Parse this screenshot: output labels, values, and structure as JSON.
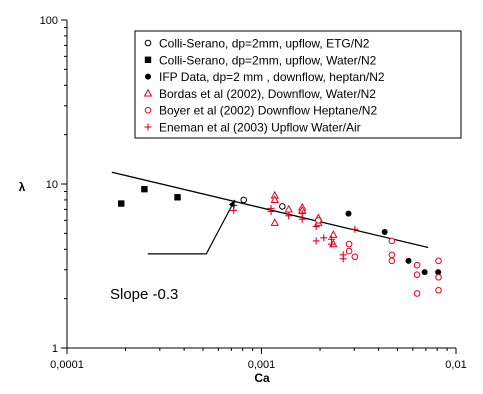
{
  "chart_data": {
    "type": "scatter",
    "title": "",
    "xlabel": "Ca",
    "ylabel": "λ",
    "x_scale": "log",
    "y_scale": "log",
    "xlim": [
      0.0001,
      0.01
    ],
    "ylim": [
      1,
      100
    ],
    "x_ticks": [
      "0,0001",
      "0,001",
      "0,01"
    ],
    "y_ticks": [
      "1",
      "10",
      "100"
    ],
    "grid": false,
    "legend_position": "top-right",
    "series": [
      {
        "name": "Colli-Serano, dp=2mm, upflow, ETG/N2",
        "marker": "open-circle",
        "color": "#000000",
        "points": [
          [
            0.00081,
            8.0
          ],
          [
            0.00128,
            7.3
          ]
        ]
      },
      {
        "name": "Colli-Serano, dp=2mm, upflow, Water/N2",
        "marker": "filled-square",
        "color": "#000000",
        "points": [
          [
            0.00019,
            7.6
          ],
          [
            0.00025,
            9.3
          ],
          [
            0.00037,
            8.3
          ]
        ]
      },
      {
        "name": "IFP Data, dp=2 mm , downflow, heptan/N2",
        "marker": "filled-circle",
        "color": "#000000",
        "points": [
          [
            0.0028,
            6.6
          ],
          [
            0.0043,
            5.1
          ],
          [
            0.0057,
            3.4
          ],
          [
            0.0069,
            2.9
          ],
          [
            0.0081,
            2.9
          ]
        ]
      },
      {
        "name": "Bordas et al (2002), Downflow, Water/N2",
        "marker": "open-triangle",
        "color": "#e8001c",
        "points": [
          [
            0.00117,
            8.5
          ],
          [
            0.00117,
            8.0
          ],
          [
            0.00117,
            5.8
          ],
          [
            0.00138,
            7.0
          ],
          [
            0.00162,
            7.2
          ],
          [
            0.00162,
            6.9
          ],
          [
            0.00196,
            6.2
          ],
          [
            0.00196,
            5.8
          ],
          [
            0.00234,
            4.9
          ],
          [
            0.00234,
            4.3
          ]
        ]
      },
      {
        "name": "Boyer et al (2002) Downflow Heptane/N2",
        "marker": "open-circle",
        "color": "#e8001c",
        "points": [
          [
            0.00196,
            6.0
          ],
          [
            0.00282,
            4.3
          ],
          [
            0.00282,
            3.9
          ],
          [
            0.00302,
            3.6
          ],
          [
            0.00468,
            4.5
          ],
          [
            0.00468,
            3.7
          ],
          [
            0.00468,
            3.4
          ],
          [
            0.00631,
            3.2
          ],
          [
            0.00631,
            2.8
          ],
          [
            0.00631,
            2.15
          ],
          [
            0.00813,
            3.4
          ],
          [
            0.00813,
            2.7
          ],
          [
            0.00813,
            2.25
          ]
        ]
      },
      {
        "name": "Eneman et al (2003) Upflow Water/Air",
        "marker": "plus",
        "color": "#e8001c",
        "points": [
          [
            0.00072,
            7.4
          ],
          [
            0.00072,
            6.9
          ],
          [
            0.00112,
            7.1
          ],
          [
            0.00112,
            6.8
          ],
          [
            0.00138,
            6.4
          ],
          [
            0.00162,
            6.6
          ],
          [
            0.00162,
            6.1
          ],
          [
            0.00191,
            5.5
          ],
          [
            0.00191,
            4.5
          ],
          [
            0.00209,
            4.7
          ],
          [
            0.00229,
            4.6
          ],
          [
            0.00229,
            4.3
          ],
          [
            0.00263,
            3.7
          ],
          [
            0.00263,
            3.5
          ],
          [
            0.00302,
            5.3
          ]
        ]
      }
    ],
    "fit_line": {
      "points": [
        [
          0.00017,
          11.8
        ],
        [
          0.0072,
          4.1
        ]
      ]
    },
    "annotation": {
      "text": "Slope -0.3",
      "arrow_from": [
        0.00026,
        3.75
      ],
      "arrow_elbow": [
        0.00052,
        3.75
      ],
      "arrow_to": [
        0.00073,
        8.0
      ]
    }
  }
}
